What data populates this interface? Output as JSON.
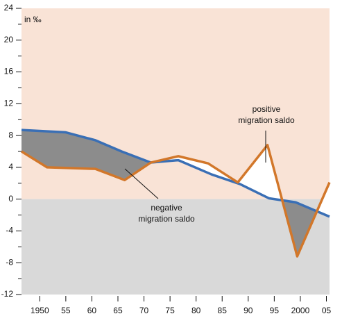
{
  "chart_data": {
    "type": "line",
    "annotations": [
      "in ‰",
      "positive",
      "migration saldo",
      "negative",
      "migration saldo"
    ],
    "xlim": [
      1946.5,
      2005.6
    ],
    "ylim": [
      -12,
      24
    ],
    "yticks": [
      -12,
      -8,
      -4,
      0,
      4,
      8,
      12,
      16,
      20,
      24
    ],
    "xticks": [
      1950,
      {
        "value": 1955,
        "label": "55"
      },
      {
        "value": 1960,
        "label": "60"
      },
      {
        "value": 1965,
        "label": "65"
      },
      {
        "value": 1970,
        "label": "70"
      },
      {
        "value": 1975,
        "label": "75"
      },
      {
        "value": 1980,
        "label": "80"
      },
      {
        "value": 1985,
        "label": "85"
      },
      {
        "value": 1990,
        "label": "90"
      },
      {
        "value": 1995,
        "label": "95"
      },
      2000,
      {
        "value": 2005,
        "label": "05"
      }
    ],
    "positive_color": "#f9e3d6",
    "negative_color": "#d9d9d9",
    "fill_color": "#8c8c8c",
    "series": [
      {
        "color": "#3a6fb5",
        "x": [
          1946.5,
          1955,
          1960.7,
          1965.7,
          1971.3,
          1976.6,
          1983,
          1988.4,
          1994,
          1999.1,
          2005.6
        ],
        "values": [
          8.7,
          8.4,
          7.4,
          6.0,
          4.6,
          4.9,
          3.1,
          1.9,
          0.1,
          -0.4,
          -2.2
        ]
      },
      {
        "color": "#d2772a",
        "x": [
          1946.5,
          1951.4,
          1960.7,
          1966.3,
          1971.3,
          1976.6,
          1982.3,
          1988,
          1993.7,
          1999.4,
          2005.6
        ],
        "values": [
          6.0,
          4.0,
          3.8,
          2.4,
          4.6,
          5.4,
          4.5,
          2.1,
          6.8,
          -7.2,
          2.1
        ]
      }
    ]
  }
}
